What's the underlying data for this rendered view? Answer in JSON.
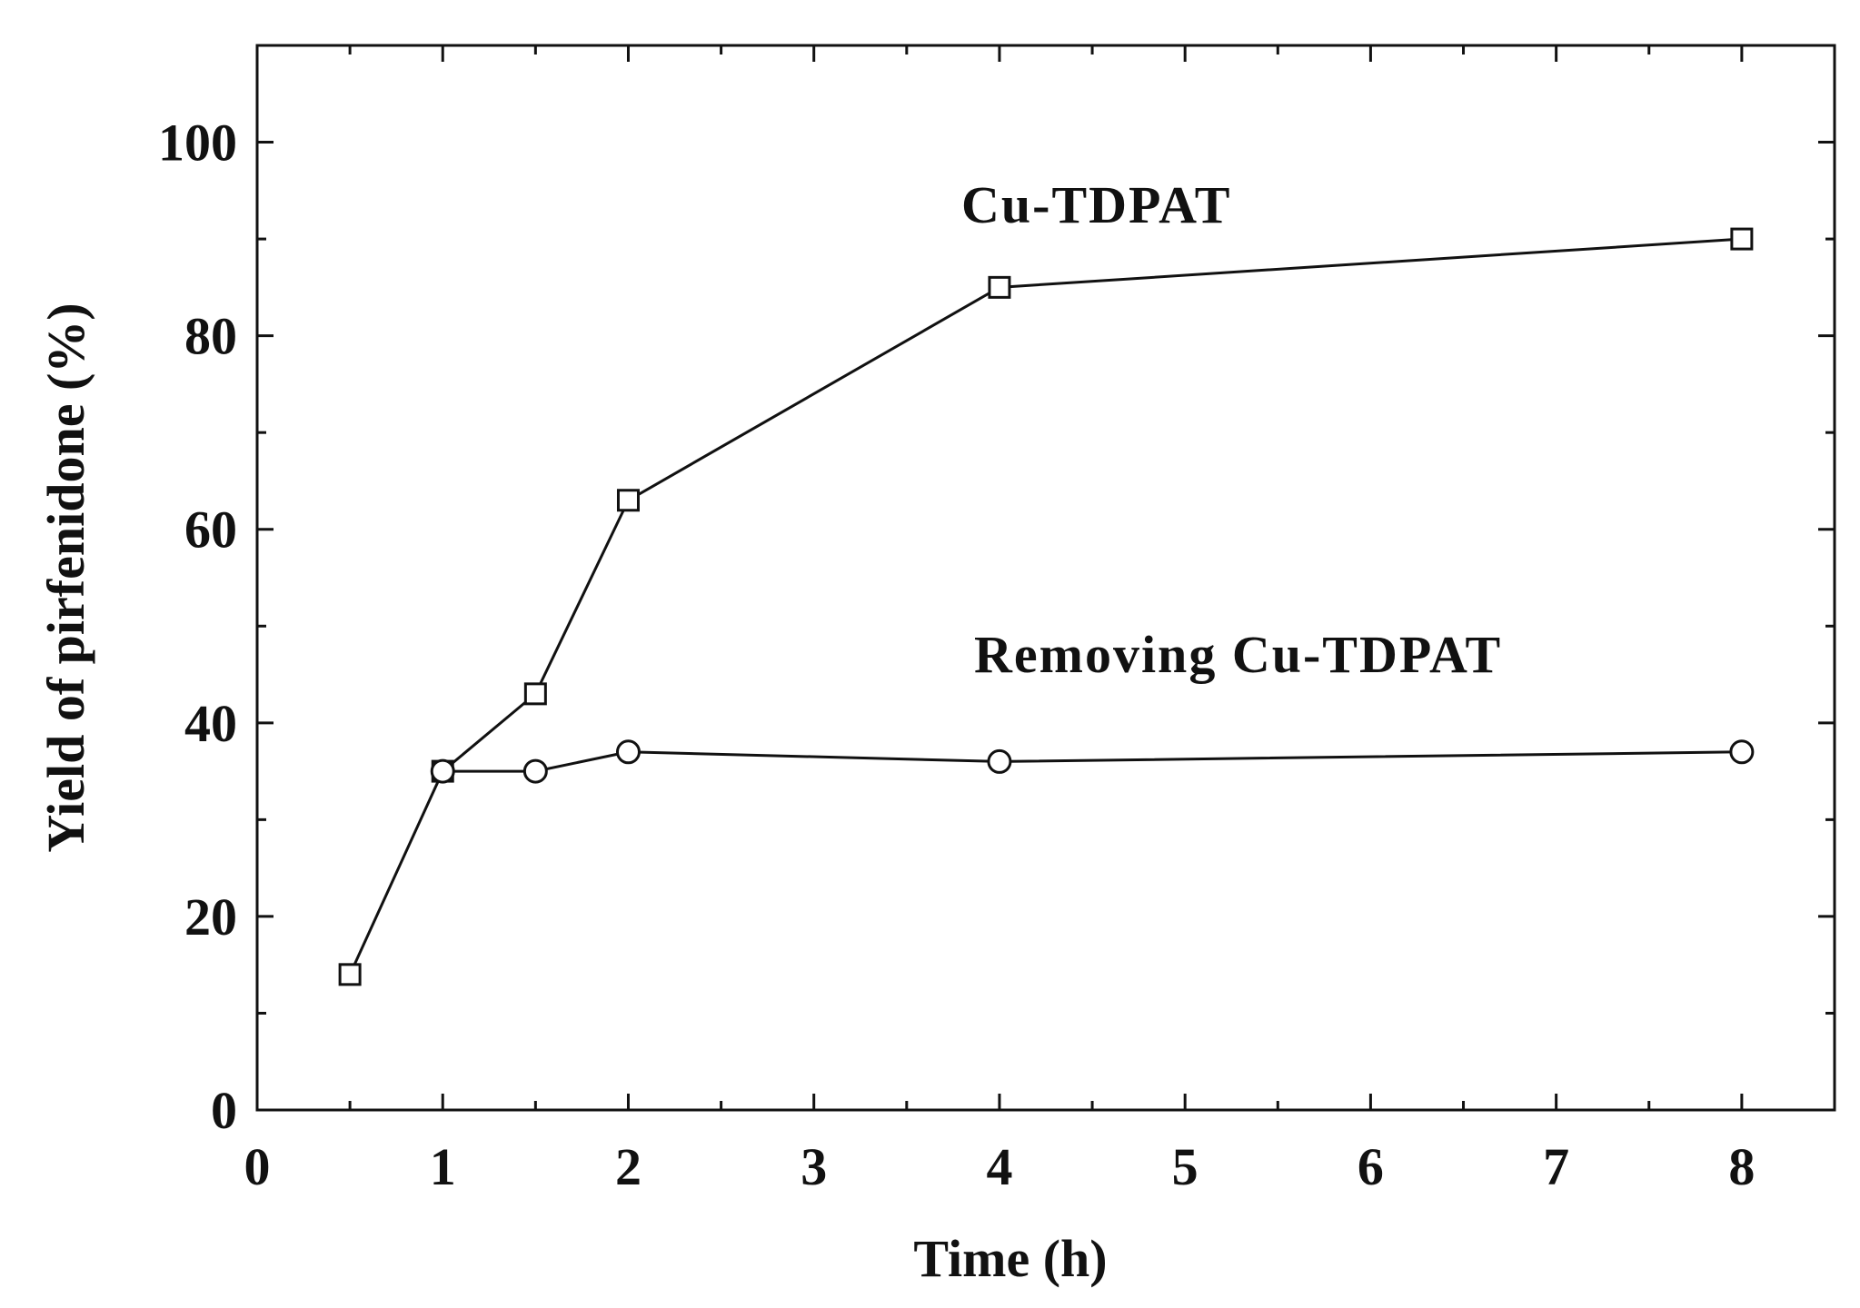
{
  "chart_data": {
    "type": "line",
    "title": "",
    "xlabel": "Time (h)",
    "ylabel": "Yield of pirfenidone (%)",
    "x_tick_labels": [
      "0",
      "1",
      "2",
      "3",
      "4",
      "5",
      "6",
      "7",
      "8"
    ],
    "y_ticks": [
      0,
      20,
      40,
      60,
      80,
      100
    ],
    "y_tick_labels": [
      "0",
      "20",
      "40",
      "60",
      "80",
      "100"
    ],
    "ylim": [
      0,
      110
    ],
    "x_domain_slots": 8.5,
    "grid": false,
    "legend": "none",
    "series": [
      {
        "name": "Cu-TDPAT",
        "marker": "square",
        "x": [
          0.5,
          1,
          1.5,
          2,
          4,
          8
        ],
        "y": [
          14,
          35,
          43,
          63,
          85,
          90
        ]
      },
      {
        "name": "Removing Cu-TDPAT",
        "marker": "circle",
        "x": [
          1,
          1.5,
          2,
          4,
          8
        ],
        "y": [
          35,
          35,
          37,
          36,
          37
        ]
      }
    ],
    "colors": {
      "line": "#111111",
      "marker_fill": "#ffffff",
      "axis": "#111111"
    }
  }
}
